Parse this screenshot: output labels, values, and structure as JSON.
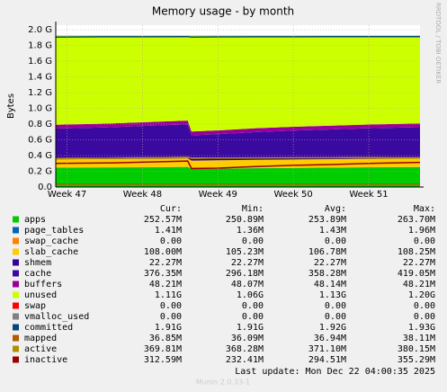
{
  "chart_data": {
    "type": "stacked_area",
    "title": "Memory usage - by month",
    "y_label": "Bytes",
    "side_text": "RRDTOOL / TOBI OETIKER",
    "footer": "Last update:  Mon Dec 22 04:00:35 2025",
    "version": "Munin 2.0.33-1",
    "x": [
      46.85,
      47.5,
      48.0,
      48.6,
      48.65,
      49.0,
      49.5,
      50.0,
      50.5,
      51.0,
      51.68
    ],
    "xlim": [
      46.85,
      51.68
    ],
    "xticks": [
      {
        "value": 47,
        "label": "Week 47"
      },
      {
        "value": 48,
        "label": "Week 48"
      },
      {
        "value": 49,
        "label": "Week 49"
      },
      {
        "value": 50,
        "label": "Week 50"
      },
      {
        "value": 51,
        "label": "Week 51"
      }
    ],
    "ylim": [
      0,
      2057000000
    ],
    "yticks": [
      {
        "value": 0,
        "label": "0.0"
      },
      {
        "value": 200000000,
        "label": "0.2 G"
      },
      {
        "value": 400000000,
        "label": "0.4 G"
      },
      {
        "value": 600000000,
        "label": "0.6 G"
      },
      {
        "value": 800000000,
        "label": "0.8 G"
      },
      {
        "value": 1000000000,
        "label": "1.0 G"
      },
      {
        "value": 1200000000,
        "label": "1.2 G"
      },
      {
        "value": 1400000000,
        "label": "1.4 G"
      },
      {
        "value": 1600000000,
        "label": "1.6 G"
      },
      {
        "value": 1800000000,
        "label": "1.8 G"
      },
      {
        "value": 2000000000,
        "label": "2.0 G"
      }
    ],
    "grid": true,
    "legend_headers": [
      "Cur:",
      "Min:",
      "Avg:",
      "Max:"
    ],
    "series": [
      {
        "name": "apps",
        "color": "#00cc00",
        "kind": "area",
        "values": [
          245000000,
          248000000,
          250000000,
          255000000,
          228000000,
          232000000,
          238000000,
          242000000,
          246000000,
          250000000,
          253000000
        ],
        "stats": [
          "252.57M",
          "250.89M",
          "253.89M",
          "263.70M"
        ]
      },
      {
        "name": "page_tables",
        "color": "#0066b3",
        "kind": "area",
        "values": [
          1400000,
          1400000,
          1400000,
          1400000,
          1400000,
          1400000,
          1400000,
          1400000,
          1400000,
          1400000,
          1400000
        ],
        "stats": [
          "1.41M",
          "1.36M",
          "1.43M",
          "1.96M"
        ]
      },
      {
        "name": "swap_cache",
        "color": "#ff8000",
        "kind": "area",
        "values": [
          0,
          0,
          0,
          0,
          0,
          0,
          0,
          0,
          0,
          0,
          0
        ],
        "stats": [
          "0.00",
          "0.00",
          "0.00",
          "0.00"
        ]
      },
      {
        "name": "slab_cache",
        "color": "#ffcc00",
        "kind": "area",
        "values": [
          105000000,
          106000000,
          107000000,
          108000000,
          106000000,
          106000000,
          107000000,
          107000000,
          107000000,
          108000000,
          108000000
        ],
        "stats": [
          "108.00M",
          "105.23M",
          "106.78M",
          "108.25M"
        ]
      },
      {
        "name": "shmem",
        "color": "#330099",
        "kind": "area",
        "values": [
          22000000,
          22000000,
          22000000,
          22000000,
          22000000,
          22000000,
          22000000,
          22000000,
          22000000,
          22000000,
          22000000
        ],
        "stats": [
          "22.27M",
          "22.27M",
          "22.27M",
          "22.27M"
        ]
      },
      {
        "name": "cache",
        "color": "#3a0aa0",
        "kind": "area",
        "values": [
          370000000,
          380000000,
          395000000,
          410000000,
          300000000,
          310000000,
          330000000,
          345000000,
          355000000,
          365000000,
          376000000
        ],
        "stats": [
          "376.35M",
          "296.18M",
          "358.28M",
          "419.05M"
        ]
      },
      {
        "name": "buffers",
        "color": "#990099",
        "kind": "area",
        "values": [
          48000000,
          48000000,
          48000000,
          48000000,
          48000000,
          48000000,
          48000000,
          48000000,
          48000000,
          48000000,
          48000000
        ],
        "stats": [
          "48.21M",
          "48.07M",
          "48.14M",
          "48.21M"
        ]
      },
      {
        "name": "unused",
        "color": "#ccff00",
        "kind": "area",
        "values": [
          1138600000,
          1124600000,
          1106600000,
          1085600000,
          1224600000,
          1210600000,
          1183600000,
          1164600000,
          1150600000,
          1135600000,
          1121600000
        ],
        "stats": [
          "1.11G",
          "1.06G",
          "1.13G",
          "1.20G"
        ]
      },
      {
        "name": "swap",
        "color": "#ff0000",
        "kind": "area",
        "values": [
          0,
          0,
          0,
          0,
          0,
          0,
          0,
          0,
          0,
          0,
          0
        ],
        "stats": [
          "0.00",
          "0.00",
          "0.00",
          "0.00"
        ]
      },
      {
        "name": "vmalloc_used",
        "color": "#808080",
        "kind": "area",
        "values": [
          0,
          0,
          0,
          0,
          0,
          0,
          0,
          0,
          0,
          0,
          0
        ],
        "stats": [
          "0.00",
          "0.00",
          "0.00",
          "0.00"
        ]
      },
      {
        "name": "committed",
        "color": "#00487d",
        "kind": "line",
        "values": [
          1905000000,
          1910000000,
          1910000000,
          1912000000,
          1905000000,
          1908000000,
          1910000000,
          1910000000,
          1911000000,
          1912000000,
          1912000000
        ],
        "stats": [
          "1.91G",
          "1.91G",
          "1.92G",
          "1.93G"
        ]
      },
      {
        "name": "mapped",
        "color": "#b35a00",
        "kind": "line",
        "values": [
          36900000,
          36900000,
          36900000,
          36900000,
          36900000,
          36900000,
          36900000,
          36900000,
          36900000,
          36900000,
          36900000
        ],
        "stats": [
          "36.85M",
          "36.09M",
          "36.94M",
          "38.11M"
        ]
      },
      {
        "name": "active",
        "color": "#b38f00",
        "kind": "line",
        "values": [
          360000000,
          365000000,
          370000000,
          375000000,
          368000000,
          368000000,
          370000000,
          371000000,
          372000000,
          374000000,
          370000000
        ],
        "stats": [
          "369.81M",
          "368.28M",
          "371.10M",
          "380.15M"
        ]
      },
      {
        "name": "inactive",
        "color": "#990000",
        "kind": "line",
        "values": [
          300000000,
          305000000,
          315000000,
          330000000,
          235000000,
          240000000,
          260000000,
          275000000,
          285000000,
          300000000,
          313000000
        ],
        "stats": [
          "312.59M",
          "232.41M",
          "294.51M",
          "355.29M"
        ]
      }
    ]
  }
}
